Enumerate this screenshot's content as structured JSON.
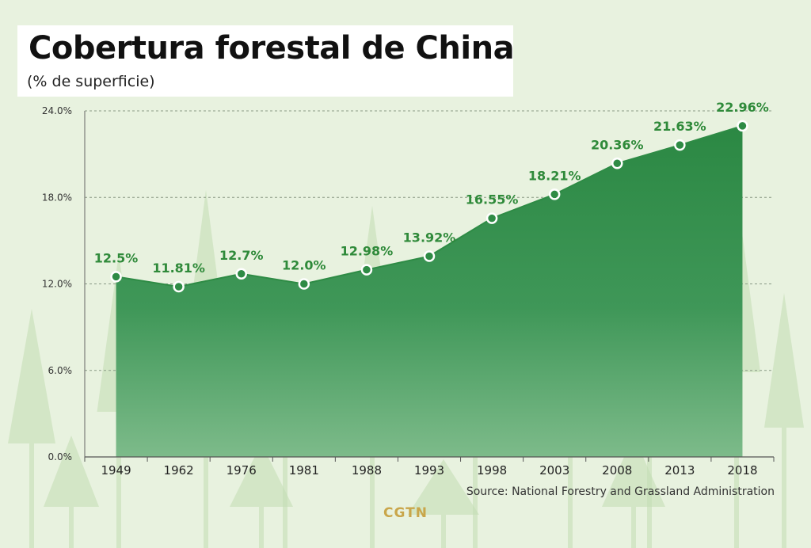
{
  "title": "Cobertura forestal de China",
  "subtitle": "(% de superficie)",
  "source": "Source: National Forestry and Grassland Administration",
  "logo_text": "CGTN",
  "colors": {
    "background": "#e8f2df",
    "area_fill": "#2e8b45",
    "line": "#2e8b45",
    "data_label": "#2f8a3a",
    "logo": "#c9a64a"
  },
  "chart_data": {
    "type": "area",
    "title": "Cobertura forestal de China",
    "subtitle": "(% de superficie)",
    "categories": [
      "1949",
      "1962",
      "1976",
      "1981",
      "1988",
      "1993",
      "1998",
      "2003",
      "2008",
      "2013",
      "2018"
    ],
    "values": [
      12.5,
      11.81,
      12.7,
      12.0,
      12.98,
      13.92,
      16.55,
      18.21,
      20.36,
      21.63,
      22.96
    ],
    "data_labels": [
      "12.5%",
      "11.81%",
      "12.7%",
      "12.0%",
      "12.98%",
      "13.92%",
      "16.55%",
      "18.21%",
      "20.36%",
      "21.63%",
      "22.96%"
    ],
    "y_ticks": [
      0,
      6,
      12,
      18,
      24
    ],
    "y_tick_labels": [
      "0.0%",
      "6.0%",
      "12.0%",
      "18.0%",
      "24.0%"
    ],
    "ylim": [
      0,
      24
    ],
    "grid": "horizontal dashed",
    "markers": "white hollow circles"
  }
}
